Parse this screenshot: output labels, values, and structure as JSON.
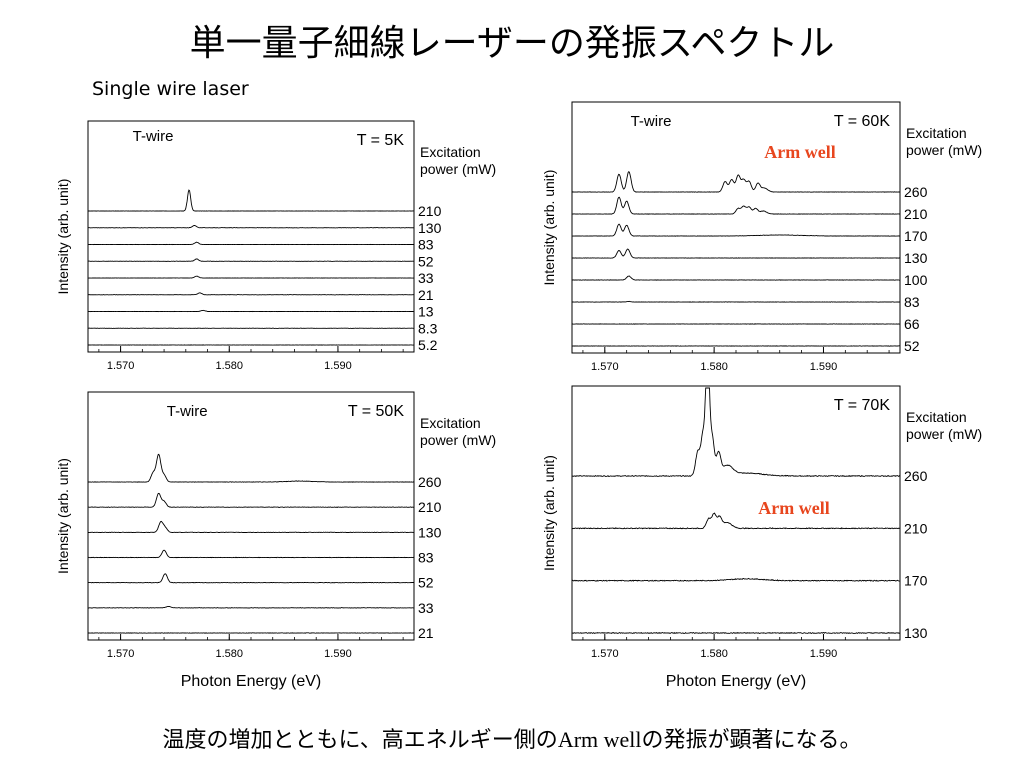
{
  "slide": {
    "title": "単一量子細線レーザーの発振スペクトル",
    "subtitle": "Single wire laser",
    "footer_pre": "温度の増加とともに、高エネルギー側の",
    "footer_arm": "Arm well",
    "footer_post": "の発振が顕著になる。"
  },
  "colors": {
    "trace": "#000000",
    "arm_well": "#e8461e",
    "axis": "#000000"
  },
  "chart_data": [
    {
      "type": "line",
      "temp_label": "T = 5K",
      "peak_label": "T-wire",
      "arm_label": "",
      "legend_title": "Excitation\npower (mW)",
      "ylabel": "Intensity (arb. unit)",
      "xlabel": "",
      "xlim": [
        1.567,
        1.597
      ],
      "x_ticks": [
        "1.570",
        "1.580",
        "1.590"
      ],
      "x_tick_values": [
        1.57,
        1.58,
        1.59
      ],
      "series": [
        {
          "name": "210",
          "peaks": [
            [
              1.5763,
              2.8,
              0.00015
            ]
          ]
        },
        {
          "name": "130",
          "peaks": [
            [
              1.5768,
              0.3,
              0.00018
            ]
          ]
        },
        {
          "name": "83",
          "peaks": [
            [
              1.577,
              0.3,
              0.00018
            ]
          ]
        },
        {
          "name": "52",
          "peaks": [
            [
              1.577,
              0.3,
              0.00018
            ]
          ]
        },
        {
          "name": "33",
          "peaks": [
            [
              1.577,
              0.25,
              0.00018
            ]
          ]
        },
        {
          "name": "21",
          "peaks": [
            [
              1.5773,
              0.25,
              0.00018
            ]
          ]
        },
        {
          "name": "13",
          "peaks": [
            [
              1.5776,
              0.15,
              0.00018
            ]
          ]
        },
        {
          "name": "8.3",
          "peaks": []
        },
        {
          "name": "5.2",
          "peaks": []
        }
      ]
    },
    {
      "type": "line",
      "temp_label": "T = 60K",
      "peak_label": "T-wire",
      "arm_label": "Arm well",
      "legend_title": "Excitation\npower (mW)",
      "ylabel": "Intensity (arb. unit)",
      "xlabel": "",
      "xlim": [
        1.567,
        1.597
      ],
      "x_ticks": [
        "1.570",
        "1.580",
        "1.590"
      ],
      "x_tick_values": [
        1.57,
        1.58,
        1.59
      ],
      "series": [
        {
          "name": "260",
          "peaks": [
            [
              1.5713,
              1.8,
              0.0002
            ],
            [
              1.5722,
              2.05,
              0.0002
            ],
            [
              1.581,
              1.05,
              0.0002
            ],
            [
              1.5816,
              1.25,
              0.0002
            ],
            [
              1.5822,
              1.65,
              0.0002
            ],
            [
              1.5827,
              1.2,
              0.0002
            ],
            [
              1.5832,
              1.05,
              0.0002
            ],
            [
              1.584,
              0.85,
              0.0002
            ],
            [
              1.5846,
              0.4,
              0.0003
            ]
          ]
        },
        {
          "name": "210",
          "peaks": [
            [
              1.5713,
              1.7,
              0.0002
            ],
            [
              1.572,
              1.3,
              0.0002
            ],
            [
              1.5822,
              0.55,
              0.0002
            ],
            [
              1.5827,
              0.75,
              0.0002
            ],
            [
              1.5832,
              0.7,
              0.0002
            ],
            [
              1.5838,
              0.55,
              0.0002
            ],
            [
              1.5845,
              0.3,
              0.0003
            ]
          ]
        },
        {
          "name": "170",
          "peaks": [
            [
              1.5713,
              1.2,
              0.0002
            ],
            [
              1.572,
              1.1,
              0.0002
            ],
            [
              1.586,
              0.1,
              0.002
            ]
          ]
        },
        {
          "name": "130",
          "peaks": [
            [
              1.5713,
              0.75,
              0.0002
            ],
            [
              1.5721,
              0.9,
              0.0002
            ]
          ]
        },
        {
          "name": "100",
          "peaks": [
            [
              1.5722,
              0.4,
              0.0002
            ]
          ]
        },
        {
          "name": "83",
          "peaks": [
            [
              1.5722,
              0.06,
              0.0002
            ]
          ]
        },
        {
          "name": "66",
          "peaks": []
        },
        {
          "name": "52",
          "peaks": []
        }
      ]
    },
    {
      "type": "line",
      "temp_label": "T = 50K",
      "peak_label": "T-wire",
      "arm_label": "",
      "legend_title": "Excitation\npower (mW)",
      "ylabel": "Intensity (arb. unit)",
      "xlabel": "Photon Energy (eV)",
      "xlim": [
        1.567,
        1.597
      ],
      "x_ticks": [
        "1.570",
        "1.580",
        "1.590"
      ],
      "x_tick_values": [
        1.57,
        1.58,
        1.59
      ],
      "series": [
        {
          "name": "260",
          "peaks": [
            [
              1.573,
              0.8,
              0.0002
            ],
            [
              1.5735,
              2.4,
              0.0002
            ],
            [
              1.574,
              0.6,
              0.0002
            ],
            [
              1.5865,
              0.08,
              0.0012
            ]
          ]
        },
        {
          "name": "210",
          "peaks": [
            [
              1.5735,
              1.2,
              0.0002
            ],
            [
              1.574,
              0.5,
              0.0002
            ]
          ]
        },
        {
          "name": "130",
          "peaks": [
            [
              1.5737,
              0.9,
              0.0002
            ],
            [
              1.5741,
              0.4,
              0.0002
            ]
          ]
        },
        {
          "name": "83",
          "peaks": [
            [
              1.574,
              0.65,
              0.0002
            ]
          ]
        },
        {
          "name": "52",
          "peaks": [
            [
              1.5741,
              0.8,
              0.0002
            ]
          ]
        },
        {
          "name": "33",
          "peaks": [
            [
              1.5744,
              0.12,
              0.0002
            ]
          ]
        },
        {
          "name": "21",
          "peaks": []
        }
      ]
    },
    {
      "type": "line",
      "temp_label": "T = 70K",
      "peak_label": "",
      "arm_label": "Arm well",
      "legend_title": "Excitation\npower (mW)",
      "ylabel": "Intensity (arb. unit)",
      "xlabel": "Photon Energy (eV)",
      "xlim": [
        1.567,
        1.597
      ],
      "x_ticks": [
        "1.570",
        "1.580",
        "1.590"
      ],
      "x_tick_values": [
        1.57,
        1.58,
        1.59
      ],
      "series": [
        {
          "name": "260",
          "peaks": [
            [
              1.5785,
              1.0,
              0.0002
            ],
            [
              1.579,
              1.8,
              0.0002
            ],
            [
              1.5794,
              6.0,
              0.00015
            ],
            [
              1.5798,
              1.7,
              0.0002
            ],
            [
              1.5804,
              0.9,
              0.0002
            ],
            [
              1.5812,
              0.4,
              0.0005
            ],
            [
              1.583,
              0.12,
              0.0015
            ]
          ]
        },
        {
          "name": "210",
          "peaks": [
            [
              1.5795,
              0.4,
              0.0002
            ],
            [
              1.58,
              0.6,
              0.0002
            ],
            [
              1.5805,
              0.45,
              0.0002
            ],
            [
              1.5812,
              0.25,
              0.0004
            ]
          ]
        },
        {
          "name": "170",
          "peaks": [
            [
              1.583,
              0.08,
              0.0015
            ]
          ]
        },
        {
          "name": "130",
          "peaks": []
        }
      ]
    }
  ]
}
